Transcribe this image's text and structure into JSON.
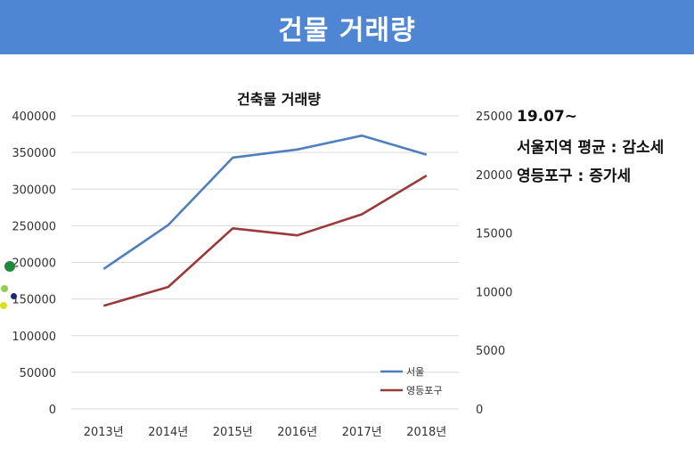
{
  "slide": {
    "title": "건물 거래량"
  },
  "notes": {
    "line1": "19.07~",
    "line2": "서울지역 평균 : 감소세",
    "line3": "영등포구 : 증가세"
  },
  "colors": {
    "banner": "#4f86d3",
    "seoul": "#4f7fbd",
    "yeongdeungpo": "#9b3a3a"
  },
  "chart_data": {
    "type": "line",
    "title": "건축물 거래량",
    "categories": [
      "2013년",
      "2014년",
      "2015년",
      "2016년",
      "2017년",
      "2018년"
    ],
    "y_left": {
      "min": 0,
      "max": 400000,
      "step": 50000,
      "ticks": [
        "0",
        "50000",
        "100000",
        "150000",
        "200000",
        "250000",
        "300000",
        "350000",
        "400000"
      ]
    },
    "y_right": {
      "min": 0,
      "max": 25000,
      "step": 5000,
      "ticks": [
        "0",
        "5000",
        "10000",
        "15000",
        "20000",
        "25000"
      ]
    },
    "series": [
      {
        "name": "서울",
        "axis": "left",
        "color": "#4f7fbd",
        "values": [
          191000,
          251000,
          343000,
          354000,
          373000,
          347000
        ]
      },
      {
        "name": "영등포구",
        "axis": "right",
        "color": "#9b3a3a",
        "values": [
          8800,
          10400,
          15400,
          14800,
          16600,
          19900
        ]
      }
    ],
    "grid": true,
    "legend": "bottom-right"
  }
}
